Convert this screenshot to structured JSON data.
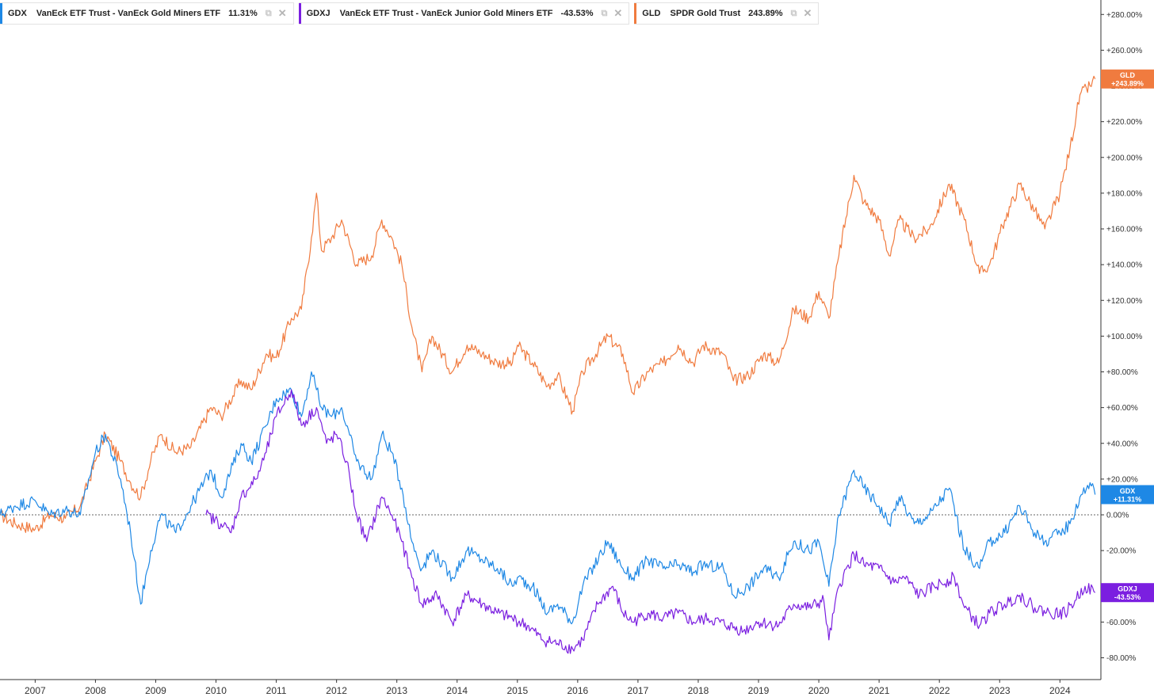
{
  "legend": [
    {
      "symbol": "GDX",
      "name": "VanEck ETF Trust - VanEck Gold Miners ETF",
      "change": "11.31%",
      "color": "#1E88E5"
    },
    {
      "symbol": "GDXJ",
      "name": "VanEck ETF Trust - VanEck Junior Gold Miners ETF",
      "change": "-43.53%",
      "color": "#7B1FE0"
    },
    {
      "symbol": "GLD",
      "name": "SPDR Gold Trust",
      "change": "243.89%",
      "color": "#F07B3F"
    }
  ],
  "icons": {
    "legend_action": "settings-icon",
    "legend_close": "close-icon"
  },
  "chart_data": {
    "type": "line",
    "xlabel": "",
    "ylabel": "",
    "x_ticks": [
      "2007",
      "2008",
      "2009",
      "2010",
      "2011",
      "2012",
      "2013",
      "2014",
      "2015",
      "2016",
      "2017",
      "2018",
      "2019",
      "2020",
      "2021",
      "2022",
      "2023",
      "2024"
    ],
    "y_ticks": [
      "+280.00%",
      "+260.00%",
      "+240.00%",
      "+220.00%",
      "+200.00%",
      "+180.00%",
      "+160.00%",
      "+140.00%",
      "+120.00%",
      "+100.00%",
      "+80.00%",
      "+60.00%",
      "+40.00%",
      "+20.00%",
      "0.00%",
      "-20.00%",
      "-40.00%",
      "-60.00%",
      "-80.00%"
    ],
    "ylim": [
      -90,
      284
    ],
    "xlim": [
      "2006-06",
      "2024-09"
    ],
    "baseline": 0,
    "grid": false,
    "legend_placement": "top-left",
    "series": [
      {
        "name": "GLD",
        "color": "#F07B3F",
        "label": "GLD",
        "label_value": "+243.89%",
        "points": [
          [
            "2006-06",
            0
          ],
          [
            "2006-09",
            -5
          ],
          [
            "2007-01",
            -8
          ],
          [
            "2007-04",
            0
          ],
          [
            "2007-07",
            -2
          ],
          [
            "2007-10",
            5
          ],
          [
            "2008-01",
            30
          ],
          [
            "2008-03",
            45
          ],
          [
            "2008-06",
            30
          ],
          [
            "2008-08",
            18
          ],
          [
            "2008-10",
            10
          ],
          [
            "2008-12",
            30
          ],
          [
            "2009-02",
            45
          ],
          [
            "2009-05",
            35
          ],
          [
            "2009-08",
            38
          ],
          [
            "2009-12",
            60
          ],
          [
            "2010-02",
            55
          ],
          [
            "2010-06",
            75
          ],
          [
            "2010-08",
            70
          ],
          [
            "2010-11",
            90
          ],
          [
            "2011-01",
            88
          ],
          [
            "2011-04",
            110
          ],
          [
            "2011-06",
            115
          ],
          [
            "2011-08",
            155
          ],
          [
            "2011-09",
            180
          ],
          [
            "2011-10",
            148
          ],
          [
            "2011-12",
            155
          ],
          [
            "2012-02",
            165
          ],
          [
            "2012-05",
            140
          ],
          [
            "2012-08",
            145
          ],
          [
            "2012-10",
            165
          ],
          [
            "2012-12",
            155
          ],
          [
            "2013-02",
            140
          ],
          [
            "2013-04",
            105
          ],
          [
            "2013-06",
            80
          ],
          [
            "2013-08",
            100
          ],
          [
            "2013-12",
            80
          ],
          [
            "2014-03",
            95
          ],
          [
            "2014-06",
            90
          ],
          [
            "2014-09",
            85
          ],
          [
            "2014-12",
            85
          ],
          [
            "2015-01",
            95
          ],
          [
            "2015-04",
            85
          ],
          [
            "2015-07",
            72
          ],
          [
            "2015-09",
            78
          ],
          [
            "2015-12",
            58
          ],
          [
            "2016-02",
            80
          ],
          [
            "2016-07",
            100
          ],
          [
            "2016-10",
            90
          ],
          [
            "2016-12",
            68
          ],
          [
            "2017-03",
            80
          ],
          [
            "2017-06",
            85
          ],
          [
            "2017-09",
            95
          ],
          [
            "2017-12",
            85
          ],
          [
            "2018-02",
            95
          ],
          [
            "2018-06",
            90
          ],
          [
            "2018-08",
            75
          ],
          [
            "2018-11",
            78
          ],
          [
            "2019-02",
            90
          ],
          [
            "2019-05",
            85
          ],
          [
            "2019-08",
            115
          ],
          [
            "2019-11",
            110
          ],
          [
            "2020-01",
            125
          ],
          [
            "2020-03",
            110
          ],
          [
            "2020-05",
            145
          ],
          [
            "2020-08",
            190
          ],
          [
            "2020-10",
            175
          ],
          [
            "2021-01",
            165
          ],
          [
            "2021-03",
            145
          ],
          [
            "2021-05",
            165
          ],
          [
            "2021-08",
            155
          ],
          [
            "2021-11",
            160
          ],
          [
            "2022-03",
            185
          ],
          [
            "2022-06",
            165
          ],
          [
            "2022-09",
            135
          ],
          [
            "2022-11",
            140
          ],
          [
            "2023-02",
            165
          ],
          [
            "2023-05",
            185
          ],
          [
            "2023-08",
            170
          ],
          [
            "2023-10",
            160
          ],
          [
            "2024-01",
            180
          ],
          [
            "2024-03",
            205
          ],
          [
            "2024-05",
            235
          ],
          [
            "2024-07",
            240
          ],
          [
            "2024-08",
            243.89
          ]
        ]
      },
      {
        "name": "GDX",
        "color": "#1E88E5",
        "label": "GDX",
        "label_value": "+11.31%",
        "points": [
          [
            "2006-06",
            0
          ],
          [
            "2006-09",
            5
          ],
          [
            "2007-01",
            8
          ],
          [
            "2007-04",
            0
          ],
          [
            "2007-07",
            3
          ],
          [
            "2007-10",
            0
          ],
          [
            "2008-01",
            35
          ],
          [
            "2008-03",
            45
          ],
          [
            "2008-06",
            20
          ],
          [
            "2008-08",
            -10
          ],
          [
            "2008-10",
            -50
          ],
          [
            "2008-12",
            -20
          ],
          [
            "2009-02",
            0
          ],
          [
            "2009-05",
            -10
          ],
          [
            "2009-08",
            5
          ],
          [
            "2009-12",
            25
          ],
          [
            "2010-02",
            10
          ],
          [
            "2010-06",
            40
          ],
          [
            "2010-08",
            30
          ],
          [
            "2010-11",
            50
          ],
          [
            "2011-01",
            65
          ],
          [
            "2011-04",
            70
          ],
          [
            "2011-06",
            55
          ],
          [
            "2011-08",
            80
          ],
          [
            "2011-09",
            70
          ],
          [
            "2011-10",
            60
          ],
          [
            "2011-12",
            55
          ],
          [
            "2012-02",
            60
          ],
          [
            "2012-05",
            30
          ],
          [
            "2012-08",
            20
          ],
          [
            "2012-10",
            45
          ],
          [
            "2012-12",
            35
          ],
          [
            "2013-02",
            15
          ],
          [
            "2013-04",
            -15
          ],
          [
            "2013-06",
            -30
          ],
          [
            "2013-08",
            -20
          ],
          [
            "2013-12",
            -35
          ],
          [
            "2014-03",
            -20
          ],
          [
            "2014-06",
            -25
          ],
          [
            "2014-09",
            -30
          ],
          [
            "2014-12",
            -40
          ],
          [
            "2015-01",
            -35
          ],
          [
            "2015-04",
            -40
          ],
          [
            "2015-07",
            -55
          ],
          [
            "2015-09",
            -50
          ],
          [
            "2015-12",
            -60
          ],
          [
            "2016-02",
            -40
          ],
          [
            "2016-07",
            -15
          ],
          [
            "2016-10",
            -30
          ],
          [
            "2016-12",
            -35
          ],
          [
            "2017-03",
            -25
          ],
          [
            "2017-06",
            -30
          ],
          [
            "2017-09",
            -28
          ],
          [
            "2017-12",
            -32
          ],
          [
            "2018-02",
            -28
          ],
          [
            "2018-06",
            -30
          ],
          [
            "2018-08",
            -45
          ],
          [
            "2018-11",
            -40
          ],
          [
            "2019-02",
            -30
          ],
          [
            "2019-05",
            -35
          ],
          [
            "2019-08",
            -15
          ],
          [
            "2019-11",
            -20
          ],
          [
            "2020-01",
            -15
          ],
          [
            "2020-03",
            -40
          ],
          [
            "2020-05",
            0
          ],
          [
            "2020-08",
            25
          ],
          [
            "2020-10",
            15
          ],
          [
            "2021-01",
            5
          ],
          [
            "2021-03",
            -5
          ],
          [
            "2021-05",
            10
          ],
          [
            "2021-08",
            -5
          ],
          [
            "2021-11",
            0
          ],
          [
            "2022-03",
            15
          ],
          [
            "2022-06",
            -20
          ],
          [
            "2022-09",
            -30
          ],
          [
            "2022-11",
            -15
          ],
          [
            "2023-02",
            -10
          ],
          [
            "2023-05",
            5
          ],
          [
            "2023-08",
            -10
          ],
          [
            "2023-10",
            -15
          ],
          [
            "2024-01",
            -10
          ],
          [
            "2024-03",
            -5
          ],
          [
            "2024-05",
            10
          ],
          [
            "2024-07",
            18
          ],
          [
            "2024-08",
            11.31
          ]
        ]
      },
      {
        "name": "GDXJ",
        "color": "#7B1FE0",
        "label": "GDXJ",
        "label_value": "-43.53%",
        "points": [
          [
            "2009-11",
            0
          ],
          [
            "2010-02",
            -5
          ],
          [
            "2010-04",
            -10
          ],
          [
            "2010-06",
            10
          ],
          [
            "2010-09",
            20
          ],
          [
            "2010-11",
            35
          ],
          [
            "2011-01",
            55
          ],
          [
            "2011-04",
            70
          ],
          [
            "2011-06",
            50
          ],
          [
            "2011-09",
            60
          ],
          [
            "2011-11",
            40
          ],
          [
            "2012-01",
            45
          ],
          [
            "2012-03",
            30
          ],
          [
            "2012-05",
            0
          ],
          [
            "2012-07",
            -15
          ],
          [
            "2012-10",
            10
          ],
          [
            "2012-12",
            0
          ],
          [
            "2013-02",
            -15
          ],
          [
            "2013-04",
            -35
          ],
          [
            "2013-06",
            -50
          ],
          [
            "2013-09",
            -45
          ],
          [
            "2013-12",
            -60
          ],
          [
            "2014-03",
            -45
          ],
          [
            "2014-06",
            -50
          ],
          [
            "2014-09",
            -55
          ],
          [
            "2014-12",
            -58
          ],
          [
            "2015-03",
            -62
          ],
          [
            "2015-06",
            -70
          ],
          [
            "2015-09",
            -72
          ],
          [
            "2015-12",
            -75
          ],
          [
            "2016-02",
            -70
          ],
          [
            "2016-05",
            -50
          ],
          [
            "2016-08",
            -40
          ],
          [
            "2016-10",
            -55
          ],
          [
            "2016-12",
            -60
          ],
          [
            "2017-03",
            -55
          ],
          [
            "2017-06",
            -58
          ],
          [
            "2017-09",
            -55
          ],
          [
            "2017-12",
            -60
          ],
          [
            "2018-03",
            -58
          ],
          [
            "2018-07",
            -62
          ],
          [
            "2018-10",
            -65
          ],
          [
            "2019-01",
            -60
          ],
          [
            "2019-05",
            -62
          ],
          [
            "2019-08",
            -50
          ],
          [
            "2019-11",
            -52
          ],
          [
            "2020-02",
            -48
          ],
          [
            "2020-03",
            -70
          ],
          [
            "2020-05",
            -40
          ],
          [
            "2020-08",
            -22
          ],
          [
            "2020-10",
            -28
          ],
          [
            "2021-01",
            -30
          ],
          [
            "2021-04",
            -38
          ],
          [
            "2021-06",
            -35
          ],
          [
            "2021-09",
            -45
          ],
          [
            "2021-12",
            -40
          ],
          [
            "2022-04",
            -35
          ],
          [
            "2022-06",
            -52
          ],
          [
            "2022-09",
            -62
          ],
          [
            "2022-11",
            -55
          ],
          [
            "2023-02",
            -50
          ],
          [
            "2023-05",
            -45
          ],
          [
            "2023-08",
            -52
          ],
          [
            "2023-11",
            -55
          ],
          [
            "2024-02",
            -55
          ],
          [
            "2024-04",
            -48
          ],
          [
            "2024-06",
            -40
          ],
          [
            "2024-08",
            -43.53
          ]
        ]
      }
    ]
  }
}
